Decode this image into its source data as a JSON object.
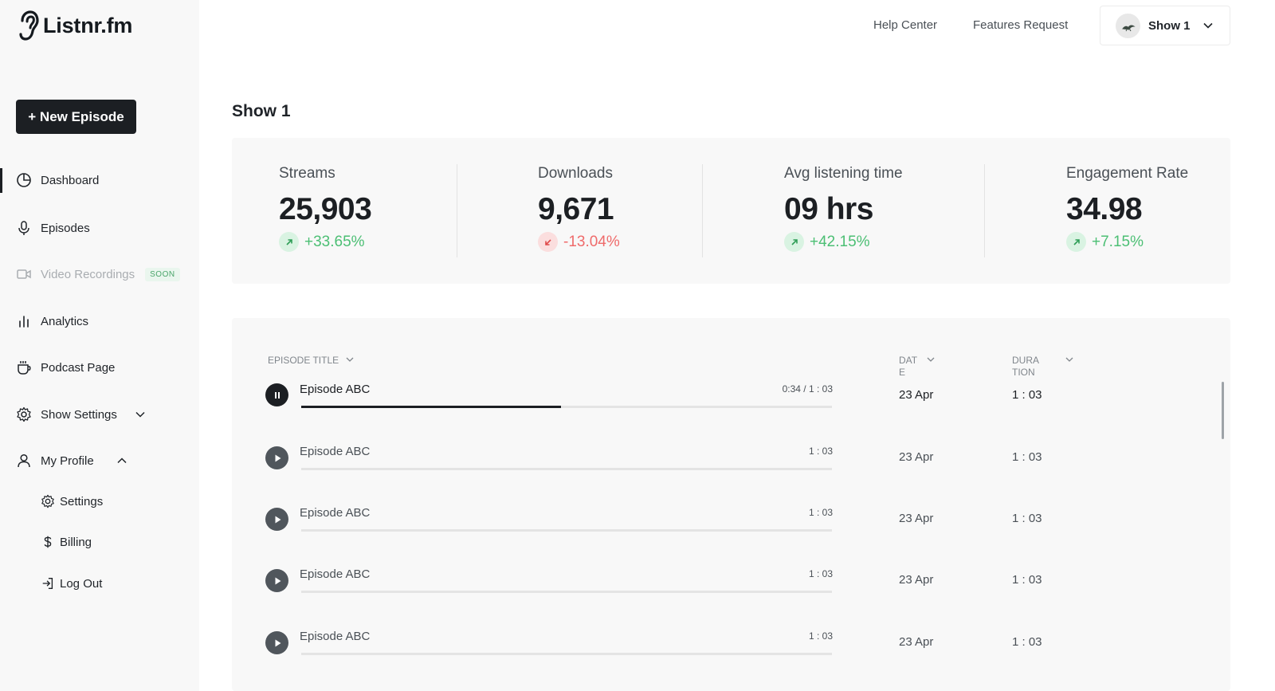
{
  "brand": {
    "name": "Listnr.fm"
  },
  "sidebar": {
    "new_episode_label": "+ New Episode",
    "items": [
      {
        "label": "Dashboard",
        "icon": "pie-chart-icon"
      },
      {
        "label": "Episodes",
        "icon": "microphone-icon"
      },
      {
        "label": "Video Recordings",
        "icon": "video-camera-icon",
        "badge": "SOON"
      },
      {
        "label": "Analytics",
        "icon": "bar-chart-icon"
      },
      {
        "label": "Podcast Page",
        "icon": "cup-icon"
      },
      {
        "label": "Show Settings",
        "icon": "gear-icon"
      },
      {
        "label": "My Profile",
        "icon": "user-icon"
      }
    ],
    "profile_sub": [
      {
        "label": "Settings",
        "icon": "gear-icon"
      },
      {
        "label": "Billing",
        "icon": "dollar-icon"
      },
      {
        "label": "Log Out",
        "icon": "logout-icon"
      }
    ]
  },
  "header": {
    "help_center": "Help Center",
    "features_request": "Features Request",
    "show_selector": "Show 1"
  },
  "page": {
    "title": "Show 1"
  },
  "stats": [
    {
      "label": "Streams",
      "value": "25,903",
      "change": "+33.65%",
      "trend": "up"
    },
    {
      "label": "Downloads",
      "value": "9,671",
      "change": "-13.04%",
      "trend": "down"
    },
    {
      "label": "Avg listening time",
      "value": "09 hrs",
      "change": "+42.15%",
      "trend": "up"
    },
    {
      "label": "Engagement Rate",
      "value": "34.98",
      "change": "+7.15%",
      "trend": "up"
    }
  ],
  "table": {
    "columns": {
      "title": "EPISODE TITLE",
      "date": "DATE",
      "duration": "DURATION"
    },
    "rows": [
      {
        "title": "Episode ABC",
        "time": "0:34 / 1 : 03",
        "date": "23 Apr",
        "duration": "1 : 03",
        "playing": true,
        "progress": 0.49
      },
      {
        "title": "Episode ABC",
        "time": "1 : 03",
        "date": "23 Apr",
        "duration": "1 : 03",
        "playing": false,
        "progress": 0
      },
      {
        "title": "Episode ABC",
        "time": "1 : 03",
        "date": "23 Apr",
        "duration": "1 : 03",
        "playing": false,
        "progress": 0
      },
      {
        "title": "Episode ABC",
        "time": "1 : 03",
        "date": "23 Apr",
        "duration": "1 : 03",
        "playing": false,
        "progress": 0
      },
      {
        "title": "Episode ABC",
        "time": "1 : 03",
        "date": "23 Apr",
        "duration": "1 : 03",
        "playing": false,
        "progress": 0
      }
    ]
  },
  "colors": {
    "positive": "#4cbf74",
    "negative": "#ef6b6b",
    "primary": "#1c1f23"
  }
}
